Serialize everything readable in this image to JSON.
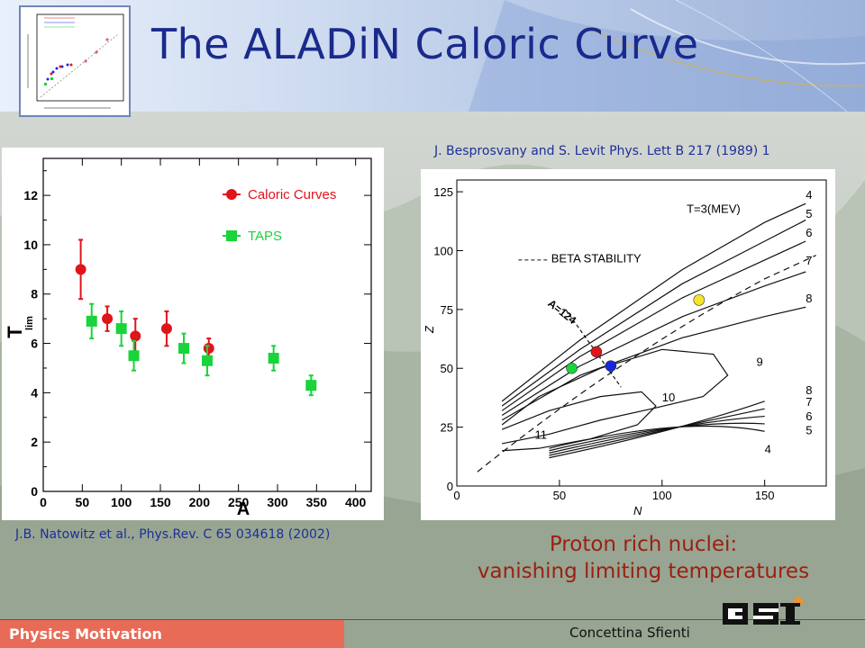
{
  "slide": {
    "title": "The ALADiN Caloric Curve",
    "ref_left": "J.B. Natowitz et al., Phys.Rev. C 65 034618  (2002)",
    "ref_right": "J. Besprosvany and S. Levit  Phys. Lett B 217 (1989) 1",
    "conclusion_line1": "Proton rich nuclei:",
    "conclusion_line2": "vanishing limiting temperatures",
    "footer_label": "Physics Motivation",
    "author": "Concettina Sfienti"
  },
  "colors": {
    "title": "#1a2a8c",
    "reference_text": "#1e2f9a",
    "conclusion": "#9c1f12",
    "footer_label_bg": "#e86b57",
    "caloric": "#e0141b",
    "taps": "#19d43a"
  },
  "chart_data": [
    {
      "type": "scatter",
      "xlabel": "A",
      "ylabel": "T_lim",
      "xlim": [
        0,
        420
      ],
      "ylim": [
        0,
        13.5
      ],
      "x_ticks": [
        "0",
        "50",
        "100",
        "150",
        "200",
        "250",
        "300",
        "350",
        "400"
      ],
      "y_ticks": [
        "0",
        "2",
        "4",
        "6",
        "8",
        "10",
        "12"
      ],
      "legend": "top-right",
      "series": [
        {
          "name": "Caloric Curves",
          "color": "#e0141b",
          "marker": "circle",
          "points": [
            {
              "x": 48,
              "y": 9.0,
              "err": 1.2
            },
            {
              "x": 82,
              "y": 7.0,
              "err": 0.5
            },
            {
              "x": 118,
              "y": 6.3,
              "err": 0.7
            },
            {
              "x": 158,
              "y": 6.6,
              "err": 0.7
            },
            {
              "x": 212,
              "y": 5.8,
              "err": 0.4
            }
          ]
        },
        {
          "name": "TAPS",
          "color": "#19d43a",
          "marker": "square",
          "points": [
            {
              "x": 62,
              "y": 6.9,
              "err": 0.7
            },
            {
              "x": 100,
              "y": 6.6,
              "err": 0.7
            },
            {
              "x": 116,
              "y": 5.5,
              "err": 0.6
            },
            {
              "x": 180,
              "y": 5.8,
              "err": 0.6
            },
            {
              "x": 210,
              "y": 5.3,
              "err": 0.6
            },
            {
              "x": 295,
              "y": 5.4,
              "err": 0.5
            },
            {
              "x": 343,
              "y": 4.3,
              "err": 0.4
            }
          ]
        }
      ]
    },
    {
      "type": "line",
      "xlabel": "N",
      "ylabel": "Z",
      "xlim": [
        0,
        180
      ],
      "ylim": [
        0,
        130
      ],
      "x_ticks": [
        "0",
        "50",
        "100",
        "150"
      ],
      "y_ticks": [
        "0",
        "25",
        "50",
        "75",
        "100",
        "125"
      ],
      "annotations": [
        "T=3(MEV)",
        "BETA STABILITY",
        "A=124"
      ],
      "curve_labels_upper": [
        "4",
        "5",
        "6",
        "7",
        "8",
        "9"
      ],
      "curve_labels_lower": [
        "10",
        "11"
      ],
      "curve_labels_bottom": [
        "8",
        "7",
        "6",
        "5",
        "4"
      ],
      "points": [
        {
          "x": 56,
          "y": 50,
          "color": "#19d43a"
        },
        {
          "x": 68,
          "y": 57,
          "color": "#e0141b"
        },
        {
          "x": 75,
          "y": 51,
          "color": "#1428e0"
        },
        {
          "x": 118,
          "y": 79,
          "color": "#f3e62a"
        }
      ]
    }
  ]
}
